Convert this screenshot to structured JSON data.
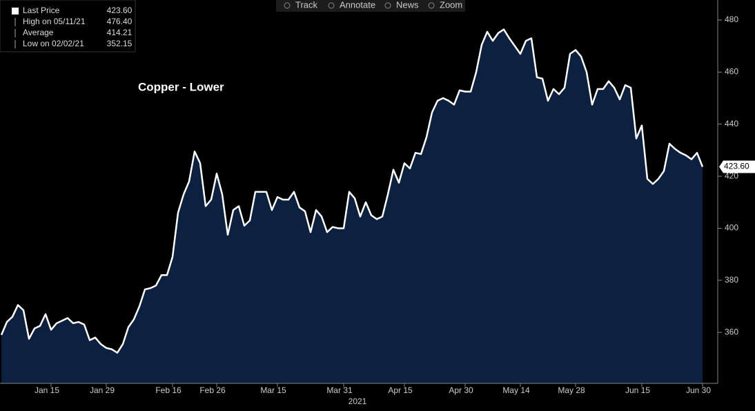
{
  "chart_data": {
    "type": "area",
    "title": "Copper - Lower",
    "toolbar": [
      "Track",
      "Annotate",
      "News",
      "Zoom"
    ],
    "stats": [
      {
        "name": "Last Price",
        "value": "423.60"
      },
      {
        "name": "High on 05/11/21",
        "value": "476.40"
      },
      {
        "name": "Average",
        "value": "414.21"
      },
      {
        "name": "Low on 02/02/21",
        "value": "352.15"
      }
    ],
    "x_axis_year": "2021",
    "categories": [
      null,
      null,
      null,
      null,
      null,
      null,
      null,
      null,
      null,
      "Jan 15",
      null,
      null,
      null,
      null,
      null,
      null,
      null,
      null,
      null,
      "Jan 29",
      null,
      null,
      null,
      null,
      null,
      null,
      null,
      null,
      null,
      null,
      null,
      "Feb 16",
      null,
      null,
      null,
      null,
      null,
      null,
      null,
      "Feb 26",
      null,
      null,
      null,
      null,
      null,
      null,
      null,
      null,
      null,
      null,
      "Mar 15",
      null,
      null,
      null,
      null,
      null,
      null,
      null,
      null,
      null,
      null,
      null,
      "Mar 31",
      null,
      null,
      null,
      null,
      null,
      null,
      null,
      null,
      null,
      null,
      "Apr 15",
      null,
      null,
      null,
      null,
      null,
      null,
      null,
      null,
      null,
      null,
      "Apr 30",
      null,
      null,
      null,
      null,
      null,
      null,
      null,
      null,
      null,
      "May 14",
      null,
      null,
      null,
      null,
      null,
      null,
      null,
      null,
      null,
      "May 28",
      null,
      null,
      null,
      null,
      null,
      null,
      null,
      null,
      null,
      null,
      null,
      "Jun 15",
      null,
      null,
      null,
      null,
      null,
      null,
      null,
      null,
      null,
      null,
      "Jun 30"
    ],
    "series": [
      {
        "name": "Last Price",
        "color": "#ffffff",
        "fill": "#0c2140",
        "values": [
          359,
          364,
          366,
          370.5,
          368.5,
          357.5,
          361.5,
          362.5,
          367,
          361,
          363.5,
          364.5,
          365.5,
          363.5,
          364,
          363,
          357,
          358,
          355.5,
          354,
          353.5,
          352.15,
          355.5,
          362,
          365,
          370,
          376.5,
          377,
          378,
          382,
          382,
          389,
          406,
          413,
          418,
          429.5,
          425,
          408.5,
          411,
          421,
          413,
          397.5,
          407,
          408.5,
          401,
          403,
          414,
          414,
          414,
          407,
          412,
          411,
          411,
          414,
          408,
          406.5,
          398.5,
          407,
          404.5,
          398.5,
          400.5,
          400,
          400,
          414,
          411.5,
          404.5,
          410,
          405,
          403.5,
          404.5,
          413,
          422.5,
          417.5,
          425,
          423,
          429,
          428.5,
          435,
          444.5,
          449,
          450,
          449,
          447.5,
          453,
          452.5,
          452.5,
          460,
          470.5,
          475.5,
          472,
          475,
          476.4,
          473,
          470,
          467,
          472,
          473,
          458,
          457.5,
          449,
          453.5,
          451.5,
          454,
          467,
          468.5,
          466,
          460,
          447.5,
          453.5,
          453.5,
          456.5,
          454,
          449.5,
          455,
          454,
          434.5,
          439.5,
          419,
          417,
          419,
          422,
          432.5,
          430.5,
          429,
          428,
          426.5,
          429,
          423.6
        ]
      }
    ],
    "ylim": [
      340.4,
      487.7
    ],
    "yticks": [
      360,
      380,
      400,
      420,
      440,
      460,
      480
    ],
    "background": "#000000"
  }
}
